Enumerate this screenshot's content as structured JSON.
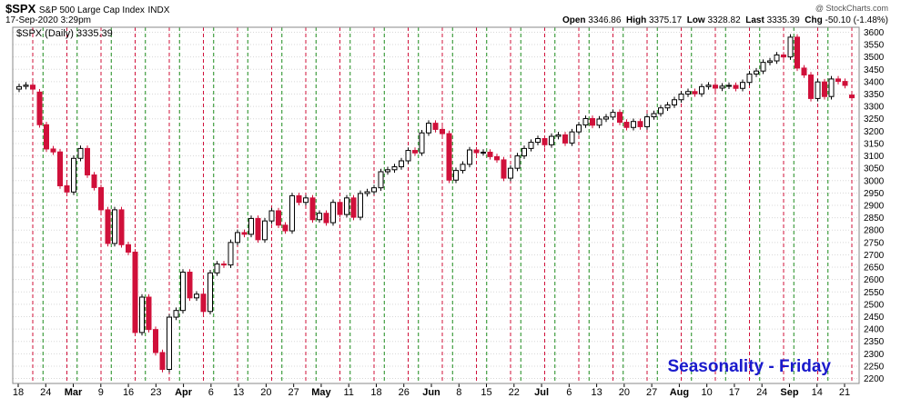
{
  "header": {
    "symbol": "$SPX",
    "name": "S&P 500 Large Cap Index",
    "exchange": "INDX",
    "datetime": "17-Sep-2020 3:29pm",
    "watermark": "@ StockCharts.com",
    "open_label": "Open",
    "open": "3346.86",
    "high_label": "High",
    "high": "3375.17",
    "low_label": "Low",
    "low": "3328.82",
    "last_label": "Last",
    "last": "3335.39",
    "chg_label": "Chg",
    "chg": "-50.10 (-1.48%)"
  },
  "legend": {
    "text": "$SPX (Daily) 3335.39"
  },
  "annotation": {
    "text": "Seasonality - Friday",
    "color": "#1a1acc"
  },
  "colors": {
    "up": "#000000",
    "down": "#d0103a",
    "friday_line": "#d0103a",
    "monday_line": "#1a8a1a",
    "grid": "#d8d8d8"
  },
  "chart_data": {
    "type": "candlestick",
    "ylim": [
      2180,
      3620
    ],
    "yticks": [
      2200,
      2250,
      2300,
      2350,
      2400,
      2450,
      2500,
      2550,
      2600,
      2650,
      2700,
      2750,
      2800,
      2850,
      2900,
      2950,
      3000,
      3050,
      3100,
      3150,
      3200,
      3250,
      3300,
      3350,
      3400,
      3450,
      3500,
      3550,
      3600
    ],
    "xticks": [
      "18",
      "24",
      "Mar",
      "9",
      "16",
      "23",
      "Apr",
      "6",
      "13",
      "20",
      "27",
      "May",
      "11",
      "18",
      "26",
      "Jun",
      "8",
      "15",
      "22",
      "Jul",
      "6",
      "13",
      "20",
      "27",
      "Aug",
      "10",
      "17",
      "24",
      "Sep",
      "14",
      "21"
    ],
    "close": [
      3380,
      3386,
      3370,
      3226,
      3128,
      3116,
      2979,
      2954,
      3090,
      3130,
      3023,
      2972,
      2882,
      2746,
      2882,
      2741,
      2711,
      2386,
      2529,
      2398,
      2305,
      2237,
      2448,
      2475,
      2630,
      2526,
      2541,
      2471,
      2627,
      2663,
      2659,
      2750,
      2790,
      2783,
      2847,
      2761,
      2837,
      2878,
      2820,
      2797,
      2939,
      2912,
      2930,
      2842,
      2868,
      2830,
      2912,
      2863,
      2930,
      2852,
      2948,
      2955,
      2971,
      3036,
      3044,
      3056,
      3080,
      3122,
      3112,
      3193,
      3232,
      3207,
      3190,
      3002,
      3041,
      3066,
      3124,
      3113,
      3115,
      3097,
      3084,
      3010,
      3050,
      3100,
      3130,
      3155,
      3170,
      3145,
      3179,
      3185,
      3152,
      3197,
      3225,
      3251,
      3224,
      3249,
      3257,
      3276,
      3236,
      3215,
      3239,
      3218,
      3258,
      3271,
      3294,
      3306,
      3327,
      3350,
      3360,
      3351,
      3380,
      3386,
      3374,
      3382,
      3385,
      3373,
      3397,
      3431,
      3443,
      3478,
      3484,
      3508,
      3500,
      3580,
      3455,
      3427,
      3332,
      3399,
      3340,
      3411,
      3401,
      3385,
      3335
    ],
    "open": [
      3370,
      3381,
      3386,
      3358,
      3226,
      3128,
      3116,
      2979,
      2954,
      3090,
      3130,
      3023,
      2972,
      2882,
      2746,
      2882,
      2741,
      2711,
      2386,
      2529,
      2398,
      2305,
      2237,
      2448,
      2475,
      2630,
      2526,
      2541,
      2471,
      2627,
      2663,
      2659,
      2750,
      2790,
      2783,
      2847,
      2761,
      2837,
      2878,
      2820,
      2797,
      2939,
      2912,
      2930,
      2842,
      2868,
      2830,
      2912,
      2863,
      2930,
      2852,
      2948,
      2955,
      2971,
      3036,
      3044,
      3056,
      3080,
      3122,
      3112,
      3193,
      3232,
      3207,
      3190,
      3002,
      3041,
      3066,
      3124,
      3113,
      3115,
      3097,
      3084,
      3010,
      3050,
      3100,
      3130,
      3155,
      3170,
      3145,
      3179,
      3185,
      3152,
      3197,
      3225,
      3251,
      3224,
      3249,
      3257,
      3276,
      3236,
      3215,
      3239,
      3218,
      3258,
      3271,
      3294,
      3306,
      3327,
      3350,
      3360,
      3351,
      3380,
      3386,
      3374,
      3382,
      3385,
      3373,
      3397,
      3431,
      3443,
      3478,
      3484,
      3508,
      3500,
      3580,
      3455,
      3427,
      3332,
      3399,
      3340,
      3411,
      3401,
      3346
    ]
  }
}
